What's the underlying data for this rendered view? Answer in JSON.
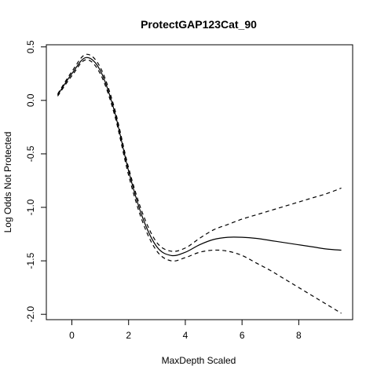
{
  "chart_data": {
    "type": "line",
    "title": "ProtectGAP123Cat_90",
    "xlabel": "MaxDepth Scaled",
    "ylabel": "Log Odds Not Protected",
    "xlim": [
      -0.9,
      9.9
    ],
    "ylim": [
      -2.05,
      0.52
    ],
    "x_ticks": [
      0,
      2,
      4,
      6,
      8
    ],
    "x_tick_labels": [
      "0",
      "2",
      "4",
      "6",
      "8"
    ],
    "y_ticks": [
      -2.0,
      -1.5,
      -1.0,
      -0.5,
      0.0,
      0.5
    ],
    "y_tick_labels": [
      "-2.0",
      "-1.5",
      "-1.0",
      "-0.5",
      "0.0",
      "0.5"
    ],
    "grid": false,
    "legend": "none",
    "series": [
      {
        "style": "solid",
        "x": [
          -0.5,
          0.0,
          0.5,
          1.0,
          1.5,
          2.0,
          2.5,
          3.0,
          3.5,
          4.0,
          4.5,
          5.0,
          5.5,
          6.0,
          6.5,
          7.0,
          7.5,
          8.0,
          8.5,
          9.0,
          9.5
        ],
        "y": [
          0.05,
          0.25,
          0.4,
          0.28,
          -0.1,
          -0.66,
          -1.1,
          -1.37,
          -1.45,
          -1.42,
          -1.35,
          -1.3,
          -1.28,
          -1.28,
          -1.29,
          -1.31,
          -1.33,
          -1.35,
          -1.37,
          -1.39,
          -1.4
        ]
      },
      {
        "style": "dashed",
        "x": [
          -0.5,
          0.0,
          0.5,
          1.0,
          1.5,
          2.0,
          2.5,
          3.0,
          3.5,
          4.0,
          4.5,
          5.0,
          5.5,
          6.0,
          6.5,
          7.0,
          7.5,
          8.0,
          8.5,
          9.0,
          9.5
        ],
        "y": [
          0.06,
          0.27,
          0.43,
          0.31,
          -0.07,
          -0.63,
          -1.06,
          -1.33,
          -1.41,
          -1.38,
          -1.29,
          -1.21,
          -1.16,
          -1.11,
          -1.07,
          -1.03,
          -0.99,
          -0.95,
          -0.91,
          -0.87,
          -0.82
        ]
      },
      {
        "style": "dashed",
        "x": [
          -0.5,
          0.0,
          0.5,
          1.0,
          1.5,
          2.0,
          2.5,
          3.0,
          3.5,
          4.0,
          4.5,
          5.0,
          5.5,
          6.0,
          6.5,
          7.0,
          7.5,
          8.0,
          8.5,
          9.0,
          9.5
        ],
        "y": [
          0.04,
          0.23,
          0.38,
          0.25,
          -0.13,
          -0.7,
          -1.14,
          -1.41,
          -1.5,
          -1.47,
          -1.42,
          -1.4,
          -1.41,
          -1.45,
          -1.52,
          -1.59,
          -1.67,
          -1.75,
          -1.83,
          -1.91,
          -1.99
        ]
      }
    ]
  }
}
